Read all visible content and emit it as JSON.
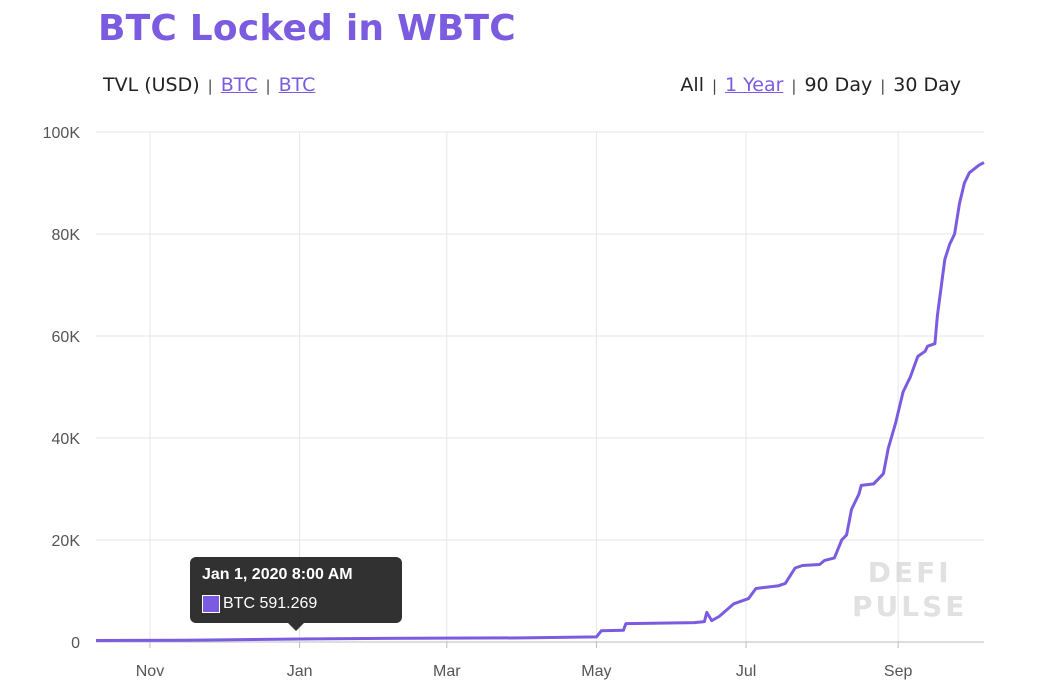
{
  "header": {
    "title": "BTC Locked in WBTC",
    "left_controls": [
      {
        "label": "TVL (USD)",
        "active": false
      },
      {
        "label": "BTC",
        "active": true
      },
      {
        "label": "BTC",
        "active": true
      }
    ],
    "right_controls": [
      {
        "label": "All",
        "active": false
      },
      {
        "label": "1 Year",
        "active": true
      },
      {
        "label": "90 Day",
        "active": false
      },
      {
        "label": "30 Day",
        "active": false
      }
    ],
    "separator": "|"
  },
  "tooltip": {
    "title": "Jan 1, 2020 8:00 AM",
    "label": "BTC 591.269"
  },
  "watermark": {
    "line1": "DEFI",
    "line2": "PULSE"
  },
  "colors": {
    "accent": "#7b5ce0",
    "grid": "#e6e6e6"
  },
  "chart_data": {
    "type": "line",
    "title": "BTC Locked in WBTC",
    "xlabel": "",
    "ylabel": "",
    "x_tick_labels": [
      "Nov",
      "Jan",
      "Mar",
      "May",
      "Jul",
      "Sep"
    ],
    "x_tick_dates": [
      "2019-11-01",
      "2020-01-01",
      "2020-03-01",
      "2020-05-01",
      "2020-07-01",
      "2020-09-01"
    ],
    "y_tick_values": [
      0,
      20000,
      40000,
      60000,
      80000,
      100000
    ],
    "y_tick_labels": [
      "0",
      "20K",
      "40K",
      "60K",
      "80K",
      "100K"
    ],
    "xlim": [
      "2019-10-10",
      "2020-10-06"
    ],
    "ylim": [
      0,
      100000
    ],
    "grid": true,
    "legend": "none",
    "series": [
      {
        "name": "BTC",
        "color": "#7b5ce0",
        "points": [
          [
            "2019-10-10",
            300
          ],
          [
            "2019-11-15",
            350
          ],
          [
            "2020-01-01",
            591
          ],
          [
            "2020-02-15",
            750
          ],
          [
            "2020-04-01",
            800
          ],
          [
            "2020-05-01",
            1000
          ],
          [
            "2020-05-03",
            2200
          ],
          [
            "2020-05-12",
            2300
          ],
          [
            "2020-05-13",
            3600
          ],
          [
            "2020-06-10",
            3800
          ],
          [
            "2020-06-14",
            4000
          ],
          [
            "2020-06-15",
            5800
          ],
          [
            "2020-06-17",
            4200
          ],
          [
            "2020-06-20",
            5000
          ],
          [
            "2020-06-26",
            7500
          ],
          [
            "2020-07-02",
            8500
          ],
          [
            "2020-07-05",
            10500
          ],
          [
            "2020-07-14",
            11000
          ],
          [
            "2020-07-17",
            11500
          ],
          [
            "2020-07-19",
            13000
          ],
          [
            "2020-07-21",
            14500
          ],
          [
            "2020-07-24",
            15000
          ],
          [
            "2020-07-31",
            15200
          ],
          [
            "2020-08-02",
            16000
          ],
          [
            "2020-08-06",
            16500
          ],
          [
            "2020-08-09",
            20000
          ],
          [
            "2020-08-11",
            21000
          ],
          [
            "2020-08-13",
            26000
          ],
          [
            "2020-08-16",
            29000
          ],
          [
            "2020-08-17",
            30700
          ],
          [
            "2020-08-22",
            31000
          ],
          [
            "2020-08-26",
            33000
          ],
          [
            "2020-08-28",
            38000
          ],
          [
            "2020-08-31",
            43000
          ],
          [
            "2020-09-03",
            49000
          ],
          [
            "2020-09-06",
            52000
          ],
          [
            "2020-09-09",
            56000
          ],
          [
            "2020-09-12",
            57000
          ],
          [
            "2020-09-13",
            58000
          ],
          [
            "2020-09-16",
            58500
          ],
          [
            "2020-09-17",
            64000
          ],
          [
            "2020-09-20",
            75000
          ],
          [
            "2020-09-22",
            78000
          ],
          [
            "2020-09-24",
            80000
          ],
          [
            "2020-09-26",
            86000
          ],
          [
            "2020-09-28",
            90000
          ],
          [
            "2020-09-30",
            92000
          ],
          [
            "2020-10-04",
            93500
          ],
          [
            "2020-10-06",
            94000
          ]
        ]
      }
    ]
  }
}
